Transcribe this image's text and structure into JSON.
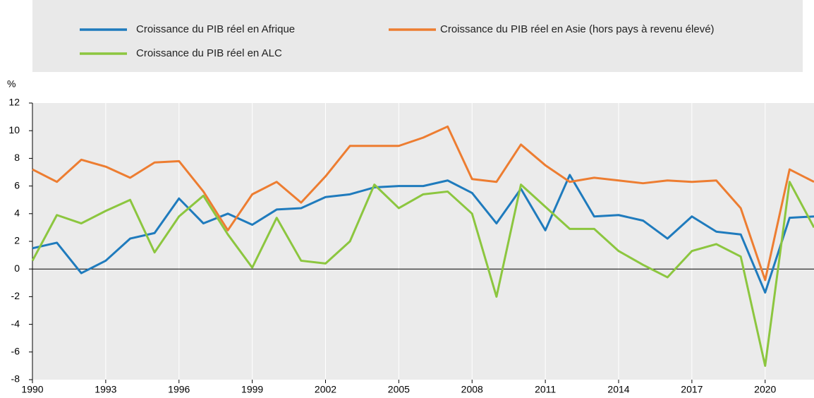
{
  "chart_data": {
    "type": "line",
    "y_label": "%",
    "x": [
      1990,
      1991,
      1992,
      1993,
      1994,
      1995,
      1996,
      1997,
      1998,
      1999,
      2000,
      2001,
      2002,
      2003,
      2004,
      2005,
      2006,
      2007,
      2008,
      2009,
      2010,
      2011,
      2012,
      2013,
      2014,
      2015,
      2016,
      2017,
      2018,
      2019,
      2020,
      2021,
      2022
    ],
    "series": [
      {
        "name": "Croissance du PIB réel en Afrique",
        "color": "#1f7bbd",
        "values": [
          1.5,
          1.9,
          -0.3,
          0.6,
          2.2,
          2.6,
          5.1,
          3.3,
          4.0,
          3.2,
          4.3,
          4.4,
          5.2,
          5.4,
          5.9,
          6.0,
          6.0,
          6.4,
          5.5,
          3.3,
          5.8,
          2.8,
          6.8,
          3.8,
          3.9,
          3.5,
          2.2,
          3.8,
          2.7,
          2.5,
          -1.7,
          3.7,
          3.8
        ]
      },
      {
        "name": "Croissance du PIB réel en Asie (hors pays à revenu élevé)",
        "color": "#ed7d31",
        "values": [
          7.2,
          6.3,
          7.9,
          7.4,
          6.6,
          7.7,
          7.8,
          5.6,
          2.8,
          5.4,
          6.3,
          4.8,
          6.7,
          8.9,
          8.9,
          8.9,
          9.5,
          10.3,
          6.5,
          6.3,
          9.0,
          7.5,
          6.3,
          6.6,
          6.4,
          6.2,
          6.4,
          6.3,
          6.4,
          4.4,
          -0.8,
          7.2,
          6.3
        ]
      },
      {
        "name": "Croissance du PIB réel en ALC",
        "color": "#8cc63f",
        "values": [
          0.6,
          3.9,
          3.3,
          4.2,
          5.0,
          1.2,
          3.8,
          5.3,
          2.5,
          0.1,
          3.7,
          0.6,
          0.4,
          2.0,
          6.1,
          4.4,
          5.4,
          5.6,
          4.0,
          -2.0,
          6.1,
          4.5,
          2.9,
          2.9,
          1.3,
          0.3,
          -0.6,
          1.3,
          1.8,
          0.9,
          -7.0,
          6.3,
          3.0
        ]
      }
    ],
    "xlim": [
      1990,
      2022
    ],
    "xticks": [
      1990,
      1993,
      1996,
      1999,
      2002,
      2005,
      2008,
      2011,
      2014,
      2017,
      2020
    ],
    "ylim": [
      -8,
      12
    ],
    "yticks": [
      -8,
      -6,
      -4,
      -2,
      0,
      2,
      4,
      6,
      8,
      10,
      12
    ],
    "grid": true
  }
}
